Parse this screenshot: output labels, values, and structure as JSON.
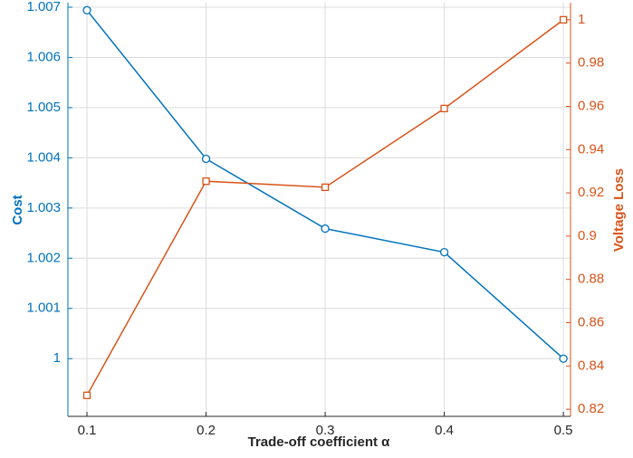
{
  "chart_data": {
    "type": "line",
    "x_label": "Trade-off coefficient α",
    "y_label": "Cost",
    "y2_label": "Voltage Loss",
    "x": [
      0.1,
      0.2,
      0.3,
      0.4,
      0.5
    ],
    "xlim": [
      0.084,
      0.506
    ],
    "xticks": [
      0.1,
      0.2,
      0.3,
      0.4,
      0.5
    ],
    "ylim": [
      0.99885,
      1.00709
    ],
    "yticks": [
      1,
      1.001,
      1.002,
      1.003,
      1.004,
      1.005,
      1.006,
      1.007
    ],
    "y2lim": [
      0.8167,
      1.0079
    ],
    "y2ticks": [
      0.82,
      0.84,
      0.86,
      0.88,
      0.9,
      0.92,
      0.94,
      0.96,
      0.98,
      1
    ],
    "grid": true,
    "series": [
      {
        "name": "Cost",
        "color": "#0072bd",
        "marker": "circle",
        "values": [
          1.00694,
          1.00398,
          1.00259,
          1.00212,
          1.0
        ]
      },
      {
        "name": "Voltage Loss",
        "color": "#d95319",
        "marker": "square",
        "axis": "y2",
        "values": [
          0.8264,
          0.9254,
          0.9226,
          0.959,
          1.0
        ]
      }
    ]
  }
}
